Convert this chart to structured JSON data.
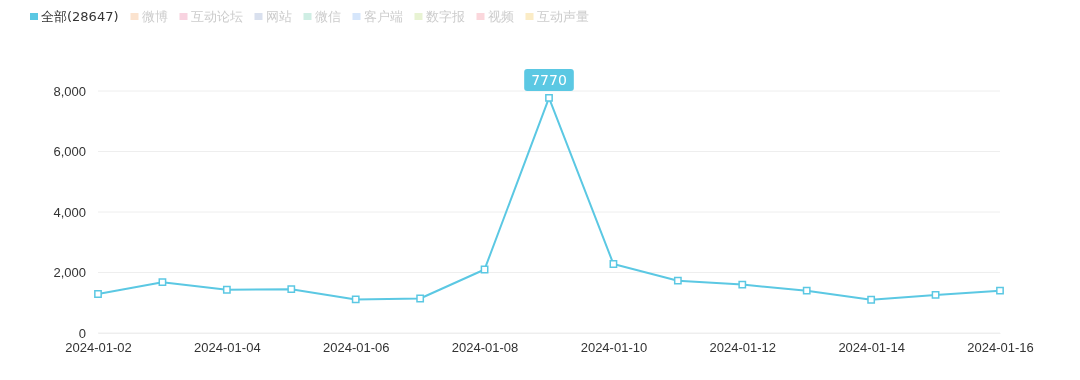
{
  "chart_data": {
    "type": "line",
    "x": [
      "2024-01-02",
      "2024-01-03",
      "2024-01-04",
      "2024-01-05",
      "2024-01-06",
      "2024-01-07",
      "2024-01-08",
      "2024-01-09",
      "2024-01-10",
      "2024-01-11",
      "2024-01-12",
      "2024-01-13",
      "2024-01-14",
      "2024-01-15",
      "2024-01-16"
    ],
    "series": [
      {
        "name": "全部(28647)",
        "color": "#5bc8e3",
        "values": [
          1290,
          1680,
          1430,
          1450,
          1110,
          1140,
          2100,
          7770,
          2280,
          1730,
          1600,
          1400,
          1100,
          1260,
          1400
        ]
      },
      {
        "name": "微博",
        "color": "#fbe3cf",
        "values": [
          null,
          null,
          null,
          null,
          null,
          null,
          null,
          null,
          null,
          null,
          null,
          null,
          null,
          null,
          null
        ]
      },
      {
        "name": "互动论坛",
        "color": "#f8d3e0",
        "values": [
          null,
          null,
          null,
          null,
          null,
          null,
          null,
          null,
          null,
          null,
          null,
          null,
          null,
          null,
          null
        ]
      },
      {
        "name": "网站",
        "color": "#d9e0ee",
        "values": [
          null,
          null,
          null,
          null,
          null,
          null,
          null,
          null,
          null,
          null,
          null,
          null,
          null,
          null,
          null
        ]
      },
      {
        "name": "微信",
        "color": "#cfeee4",
        "values": [
          null,
          null,
          null,
          null,
          null,
          null,
          null,
          null,
          null,
          null,
          null,
          null,
          null,
          null,
          null
        ]
      },
      {
        "name": "客户端",
        "color": "#d6e6fb",
        "values": [
          null,
          null,
          null,
          null,
          null,
          null,
          null,
          null,
          null,
          null,
          null,
          null,
          null,
          null,
          null
        ]
      },
      {
        "name": "数字报",
        "color": "#e8f3d3",
        "values": [
          null,
          null,
          null,
          null,
          null,
          null,
          null,
          null,
          null,
          null,
          null,
          null,
          null,
          null,
          null
        ]
      },
      {
        "name": "视频",
        "color": "#fbd7dc",
        "values": [
          null,
          null,
          null,
          null,
          null,
          null,
          null,
          null,
          null,
          null,
          null,
          null,
          null,
          null,
          null
        ]
      },
      {
        "name": "互动声量",
        "color": "#fbecc6",
        "values": [
          null,
          null,
          null,
          null,
          null,
          null,
          null,
          null,
          null,
          null,
          null,
          null,
          null,
          null,
          null
        ]
      }
    ],
    "xlim": [
      "2024-01-02",
      "2024-01-16"
    ],
    "xticks": [
      {
        "value": "2024-01-02",
        "label": "2024-01-02"
      },
      {
        "value": "2024-01-04",
        "label": "2024-01-04"
      },
      {
        "value": "2024-01-06",
        "label": "2024-01-06"
      },
      {
        "value": "2024-01-08",
        "label": "2024-01-08"
      },
      {
        "value": "2024-01-10",
        "label": "2024-01-10"
      },
      {
        "value": "2024-01-12",
        "label": "2024-01-12"
      },
      {
        "value": "2024-01-14",
        "label": "2024-01-14"
      },
      {
        "value": "2024-01-16",
        "label": "2024-01-16"
      }
    ],
    "ylim": [
      0,
      8000
    ],
    "yticks": [
      0,
      {
        "value": 2000,
        "label": "2,000"
      },
      {
        "value": 4000,
        "label": "4,000"
      },
      {
        "value": 6000,
        "label": "6,000"
      },
      {
        "value": 8000,
        "label": "8,000"
      }
    ],
    "annotations": [
      {
        "text": "7770",
        "x": "2024-01-09",
        "y": 7770
      }
    ],
    "grid": "y",
    "legend": "top left",
    "marker": "square",
    "line_style": "solid"
  }
}
